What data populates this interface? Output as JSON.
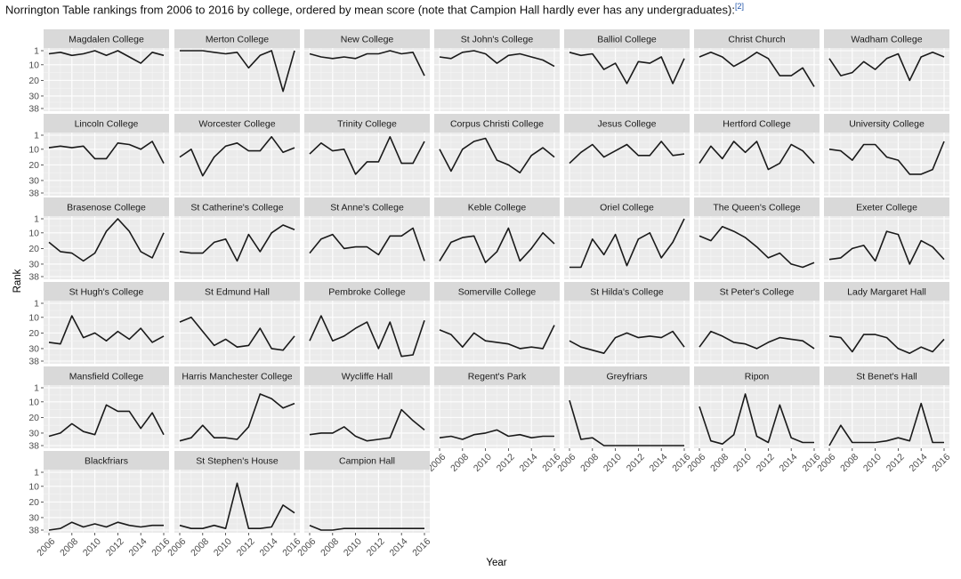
{
  "caption": {
    "text": "Norrington Table rankings from 2006 to 2016 by college, ordered by mean score (note that Campion Hall hardly ever has any undergraduates):",
    "ref": "[2]"
  },
  "colors": {
    "panel_bg": "#ebebeb",
    "strip_bg": "#d9d9d9",
    "grid_major": "#ffffff",
    "grid_minor": "#f5f5f5",
    "line": "#1a1a1a"
  },
  "chart_data": {
    "type": "line",
    "facet": "small-multiples",
    "xlabel": "Year",
    "ylabel": "Rank",
    "x": [
      2006,
      2007,
      2008,
      2009,
      2010,
      2011,
      2012,
      2013,
      2014,
      2015,
      2016
    ],
    "x_ticks": [
      "2006",
      "2008",
      "2010",
      "2012",
      "2014",
      "2016"
    ],
    "y_ticks": [
      "1",
      "10",
      "20",
      "30",
      "38"
    ],
    "ylim": [
      1,
      38
    ],
    "y_reversed": true,
    "grid": true,
    "panels": [
      {
        "name": "Magdalen College",
        "values": [
          3,
          2,
          4,
          3,
          1,
          4,
          1,
          5,
          9,
          2,
          4
        ]
      },
      {
        "name": "Merton College",
        "values": [
          1,
          1,
          1,
          2,
          3,
          2,
          12,
          4,
          1,
          27,
          1
        ]
      },
      {
        "name": "New College",
        "values": [
          3,
          5,
          6,
          5,
          6,
          3,
          3,
          1,
          3,
          2,
          17
        ]
      },
      {
        "name": "St John's College",
        "values": [
          5,
          6,
          2,
          1,
          3,
          9,
          4,
          3,
          5,
          7,
          11
        ]
      },
      {
        "name": "Balliol College",
        "values": [
          2,
          4,
          3,
          13,
          9,
          22,
          8,
          9,
          5,
          22,
          6
        ]
      },
      {
        "name": "Christ Church",
        "values": [
          5,
          2,
          5,
          11,
          7,
          2,
          6,
          17,
          17,
          12,
          24
        ]
      },
      {
        "name": "Wadham College",
        "values": [
          6,
          17,
          15,
          8,
          13,
          6,
          3,
          20,
          5,
          2,
          5
        ]
      },
      {
        "name": "Lincoln College",
        "values": [
          9,
          8,
          9,
          8,
          16,
          16,
          6,
          7,
          10,
          5,
          19
        ]
      },
      {
        "name": "Worcester College",
        "values": [
          15,
          10,
          27,
          15,
          8,
          6,
          11,
          11,
          2,
          12,
          9
        ]
      },
      {
        "name": "Trinity College",
        "values": [
          13,
          6,
          11,
          10,
          26,
          18,
          18,
          2,
          19,
          19,
          5
        ]
      },
      {
        "name": "Corpus Christi College",
        "values": [
          10,
          24,
          10,
          5,
          3,
          17,
          20,
          25,
          14,
          9,
          15
        ]
      },
      {
        "name": "Jesus College",
        "values": [
          19,
          12,
          7,
          15,
          11,
          7,
          14,
          14,
          5,
          14,
          13
        ]
      },
      {
        "name": "Hertford College",
        "values": [
          19,
          8,
          16,
          5,
          12,
          5,
          23,
          19,
          7,
          11,
          19
        ]
      },
      {
        "name": "University College",
        "values": [
          10,
          11,
          17,
          7,
          7,
          15,
          17,
          26,
          26,
          23,
          5
        ]
      },
      {
        "name": "Brasenose College",
        "values": [
          16,
          22,
          23,
          28,
          23,
          9,
          1,
          9,
          22,
          26,
          10
        ]
      },
      {
        "name": "St Catherine's College",
        "values": [
          22,
          23,
          23,
          16,
          14,
          28,
          11,
          22,
          10,
          5,
          8
        ]
      },
      {
        "name": "St Anne's College",
        "values": [
          23,
          14,
          11,
          20,
          19,
          19,
          24,
          12,
          12,
          7,
          28
        ]
      },
      {
        "name": "Keble College",
        "values": [
          28,
          16,
          13,
          12,
          29,
          22,
          7,
          28,
          20,
          10,
          17
        ]
      },
      {
        "name": "Oriel College",
        "values": [
          32,
          32,
          14,
          24,
          11,
          31,
          14,
          10,
          26,
          16,
          1
        ]
      },
      {
        "name": "The Queen's College",
        "values": [
          12,
          15,
          6,
          9,
          13,
          19,
          26,
          23,
          30,
          32,
          29
        ]
      },
      {
        "name": "Exeter College",
        "values": [
          27,
          26,
          20,
          18,
          28,
          9,
          11,
          30,
          15,
          19,
          27
        ]
      },
      {
        "name": "St Hugh's College",
        "values": [
          26,
          27,
          9,
          23,
          20,
          25,
          19,
          24,
          17,
          26,
          22
        ]
      },
      {
        "name": "St Edmund Hall",
        "values": [
          13,
          10,
          19,
          28,
          24,
          29,
          28,
          17,
          30,
          31,
          22
        ]
      },
      {
        "name": "Pembroke College",
        "values": [
          25,
          9,
          25,
          22,
          17,
          13,
          30,
          13,
          35,
          34,
          12
        ]
      },
      {
        "name": "Somerville College",
        "values": [
          18,
          21,
          29,
          20,
          25,
          26,
          27,
          30,
          29,
          30,
          15
        ]
      },
      {
        "name": "St Hilda's College",
        "values": [
          25,
          29,
          31,
          33,
          23,
          20,
          23,
          22,
          23,
          19,
          29
        ]
      },
      {
        "name": "St Peter's College",
        "values": [
          29,
          19,
          22,
          26,
          27,
          30,
          26,
          23,
          24,
          25,
          30
        ]
      },
      {
        "name": "Lady Margaret Hall",
        "values": [
          22,
          23,
          32,
          21,
          21,
          23,
          30,
          33,
          29,
          32,
          24
        ]
      },
      {
        "name": "Mansfield College",
        "values": [
          32,
          30,
          24,
          29,
          31,
          12,
          16,
          16,
          27,
          17,
          31
        ]
      },
      {
        "name": "Harris Manchester College",
        "values": [
          35,
          33,
          25,
          33,
          33,
          34,
          26,
          5,
          8,
          14,
          11
        ]
      },
      {
        "name": "Wycliffe Hall",
        "values": [
          31,
          30,
          30,
          26,
          32,
          35,
          34,
          33,
          15,
          22,
          28
        ]
      },
      {
        "name": "Regent's Park",
        "values": [
          33,
          32,
          34,
          31,
          30,
          28,
          32,
          31,
          33,
          32,
          32
        ]
      },
      {
        "name": "Greyfriars",
        "values": [
          9,
          34,
          33,
          38,
          38,
          38,
          38,
          38,
          38,
          38,
          38
        ]
      },
      {
        "name": "Ripon",
        "values": [
          13,
          35,
          37,
          31,
          5,
          32,
          36,
          12,
          33,
          36,
          36
        ]
      },
      {
        "name": "St Benet's Hall",
        "values": [
          38,
          25,
          36,
          36,
          36,
          35,
          33,
          35,
          11,
          36,
          36
        ]
      },
      {
        "name": "Blackfriars",
        "values": [
          38,
          37,
          33,
          36,
          34,
          36,
          33,
          35,
          36,
          35,
          35
        ]
      },
      {
        "name": "St Stephen's House",
        "values": [
          35,
          37,
          37,
          35,
          37,
          8,
          37,
          37,
          36,
          22,
          27
        ]
      },
      {
        "name": "Campion Hall",
        "values": [
          35,
          38,
          38,
          37,
          37,
          37,
          37,
          37,
          37,
          37,
          37
        ]
      }
    ]
  }
}
